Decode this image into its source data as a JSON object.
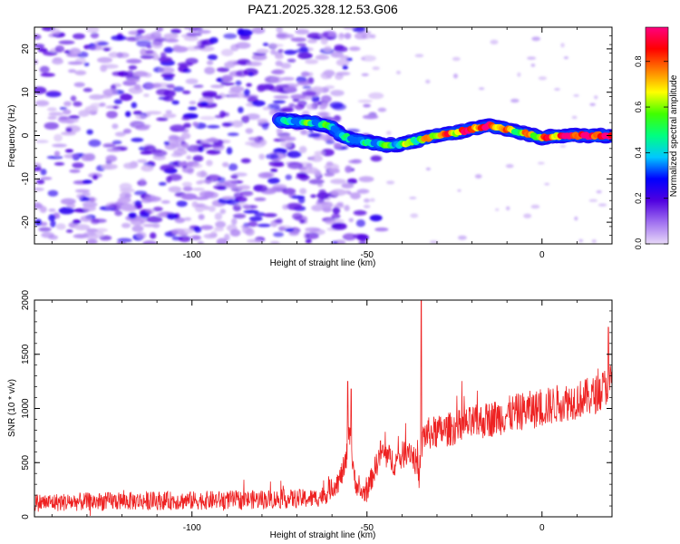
{
  "title": "PAZ1.2025.328.12.53.G06",
  "chart_data": [
    {
      "type": "heatmap",
      "name": "spectrogram",
      "xlabel": "Height of straight line (km)",
      "ylabel": "Frequency (Hz)",
      "xlim": [
        -145,
        20
      ],
      "ylim": [
        -25,
        25
      ],
      "xticks": [
        -100,
        -50,
        0
      ],
      "xtick_labels": [
        "-100",
        "-50",
        "0"
      ],
      "yticks": [
        -20,
        -10,
        0,
        10,
        20
      ],
      "ytick_labels": [
        "-20",
        "-10",
        "0",
        "10",
        "20"
      ],
      "colorbar": {
        "label": "Normalized spectral amplitude",
        "range": [
          0,
          0.95
        ],
        "ticks": [
          0.0,
          0.2,
          0.4,
          0.6,
          0.8
        ],
        "tick_labels": [
          "0.0",
          "0.2",
          "0.4",
          "0.6",
          "0.8"
        ],
        "colormap": [
          "#e8d8f8",
          "#a070f0",
          "#5000e0",
          "#0000ff",
          "#00c8ff",
          "#00ff80",
          "#40ff00",
          "#ffff00",
          "#ff8000",
          "#ff0000",
          "#ff0080"
        ]
      },
      "ridge": {
        "x": [
          -75,
          -70,
          -65,
          -60,
          -58,
          -55,
          -50,
          -45,
          -40,
          -35,
          -30,
          -25,
          -20,
          -15,
          -10,
          -5,
          0,
          5,
          10,
          15,
          20
        ],
        "y": [
          3.5,
          3.2,
          3.0,
          2.0,
          0.5,
          -0.8,
          -1.5,
          -2.2,
          -2.0,
          -1.0,
          0.0,
          0.6,
          1.5,
          2.3,
          1.5,
          0.5,
          -0.5,
          0.0,
          0.0,
          0.0,
          0.0
        ],
        "amplitude": [
          0.35,
          0.4,
          0.5,
          0.4,
          0.4,
          0.3,
          0.35,
          0.5,
          0.55,
          0.6,
          0.75,
          0.8,
          0.85,
          0.9,
          0.7,
          0.65,
          0.75,
          0.9,
          0.95,
          0.95,
          0.9
        ]
      },
      "noise_extent_km": [
        -145,
        -60
      ]
    },
    {
      "type": "line",
      "name": "snr",
      "color": "#ee2222",
      "xlabel": "Height of straight line (km)",
      "ylabel": "SNR (10 * v/v)",
      "xlim": [
        -145,
        20
      ],
      "ylim": [
        0,
        2000
      ],
      "xticks": [
        -100,
        -50,
        0
      ],
      "xtick_labels": [
        "-100",
        "-50",
        "0"
      ],
      "yticks": [
        0,
        500,
        1000,
        1500,
        2000
      ],
      "ytick_labels": [
        "0",
        "500",
        "1000",
        "1500",
        "2000"
      ],
      "trend": {
        "x": [
          -145,
          -120,
          -100,
          -80,
          -65,
          -62,
          -60,
          -58,
          -56,
          -55,
          -54,
          -53,
          -52,
          -50,
          -48,
          -46,
          -44,
          -42,
          -40,
          -38,
          -36,
          -35,
          -34,
          -32,
          -30,
          -25,
          -20,
          -15,
          -10,
          -5,
          0,
          5,
          10,
          15,
          20
        ],
        "y": [
          130,
          145,
          150,
          160,
          170,
          200,
          270,
          330,
          500,
          850,
          420,
          300,
          220,
          230,
          420,
          600,
          550,
          500,
          560,
          640,
          500,
          350,
          750,
          770,
          780,
          820,
          860,
          900,
          940,
          980,
          1000,
          1050,
          1080,
          1120,
          1250
        ]
      },
      "noise_amplitude": [
        70,
        180
      ],
      "spikes": [
        {
          "x": -54.5,
          "y": 1180
        },
        {
          "x": -55.5,
          "y": 1250
        },
        {
          "x": -34.5,
          "y": 2000
        },
        {
          "x": 19,
          "y": 1750
        }
      ]
    }
  ]
}
